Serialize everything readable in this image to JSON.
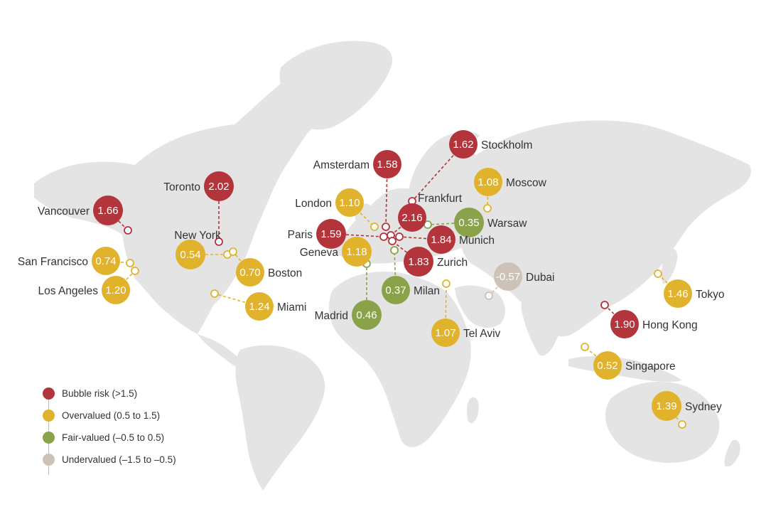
{
  "colors": {
    "bubble_risk": "#b3343a",
    "overvalued": "#e1b32c",
    "fair_valued": "#8aa24a",
    "undervalued": "#cdc2b8",
    "land": "#e4e4e4"
  },
  "legend": [
    {
      "category": "bubble_risk",
      "label": "Bubble risk (>1.5)"
    },
    {
      "category": "overvalued",
      "label": "Overvalued (0.5 to 1.5)"
    },
    {
      "category": "fair_valued",
      "label": "Fair-valued (–0.5 to 0.5)"
    },
    {
      "category": "undervalued",
      "label": "Undervalued (–1.5 to –0.5)"
    }
  ],
  "cities": [
    {
      "id": "stockholm",
      "name": "Stockholm",
      "value": "1.62",
      "category": "bubble_risk"
    },
    {
      "id": "amsterdam",
      "name": "Amsterdam",
      "value": "1.58",
      "category": "bubble_risk"
    },
    {
      "id": "toronto",
      "name": "Toronto",
      "value": "2.02",
      "category": "bubble_risk"
    },
    {
      "id": "moscow",
      "name": "Moscow",
      "value": "1.08",
      "category": "overvalued"
    },
    {
      "id": "london",
      "name": "London",
      "value": "1.10",
      "category": "overvalued"
    },
    {
      "id": "frankfurt",
      "name": "Frankfurt",
      "value": "2.16",
      "category": "bubble_risk"
    },
    {
      "id": "vancouver",
      "name": "Vancouver",
      "value": "1.66",
      "category": "bubble_risk"
    },
    {
      "id": "warsaw",
      "name": "Warsaw",
      "value": "0.35",
      "category": "fair_valued"
    },
    {
      "id": "paris",
      "name": "Paris",
      "value": "1.59",
      "category": "bubble_risk"
    },
    {
      "id": "newyork",
      "name": "New York",
      "value": "0.54",
      "category": "overvalued"
    },
    {
      "id": "munich",
      "name": "Munich",
      "value": "1.84",
      "category": "bubble_risk"
    },
    {
      "id": "geneva",
      "name": "Geneva",
      "value": "1.18",
      "category": "overvalued"
    },
    {
      "id": "zurich",
      "name": "Zurich",
      "value": "1.83",
      "category": "bubble_risk"
    },
    {
      "id": "sanfrancisco",
      "name": "San Francisco",
      "value": "0.74",
      "category": "overvalued"
    },
    {
      "id": "boston",
      "name": "Boston",
      "value": "0.70",
      "category": "overvalued"
    },
    {
      "id": "dubai",
      "name": "Dubai",
      "value": "-0.57",
      "category": "undervalued"
    },
    {
      "id": "losangeles",
      "name": "Los Angeles",
      "value": "1.20",
      "category": "overvalued"
    },
    {
      "id": "milan",
      "name": "Milan",
      "value": "0.37",
      "category": "fair_valued"
    },
    {
      "id": "tokyo",
      "name": "Tokyo",
      "value": "1.46",
      "category": "overvalued"
    },
    {
      "id": "miami",
      "name": "Miami",
      "value": "1.24",
      "category": "overvalued"
    },
    {
      "id": "madrid",
      "name": "Madrid",
      "value": "0.46",
      "category": "fair_valued"
    },
    {
      "id": "hongkong",
      "name": "Hong Kong",
      "value": "1.90",
      "category": "bubble_risk"
    },
    {
      "id": "telaviv",
      "name": "Tel Aviv",
      "value": "1.07",
      "category": "overvalued"
    },
    {
      "id": "singapore",
      "name": "Singapore",
      "value": "0.52",
      "category": "overvalued"
    },
    {
      "id": "sydney",
      "name": "Sydney",
      "value": "1.39",
      "category": "overvalued"
    }
  ]
}
